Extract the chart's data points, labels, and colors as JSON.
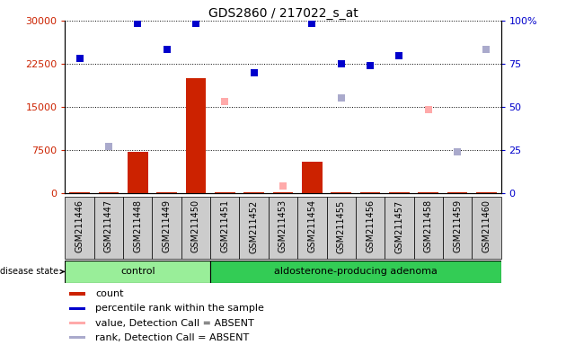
{
  "title": "GDS2860 / 217022_s_at",
  "samples": [
    "GSM211446",
    "GSM211447",
    "GSM211448",
    "GSM211449",
    "GSM211450",
    "GSM211451",
    "GSM211452",
    "GSM211453",
    "GSM211454",
    "GSM211455",
    "GSM211456",
    "GSM211457",
    "GSM211458",
    "GSM211459",
    "GSM211460"
  ],
  "count_values": [
    150,
    100,
    7200,
    100,
    20000,
    100,
    100,
    100,
    5500,
    100,
    100,
    100,
    100,
    100,
    100
  ],
  "percentile_rank": [
    23500,
    null,
    29500,
    25000,
    29500,
    null,
    21000,
    null,
    29500,
    22500,
    22200,
    23900,
    null,
    null,
    null
  ],
  "value_absent": [
    null,
    null,
    null,
    null,
    null,
    16000,
    null,
    1200,
    null,
    null,
    null,
    null,
    14500,
    null,
    null
  ],
  "rank_absent": [
    null,
    8200,
    null,
    null,
    null,
    null,
    null,
    null,
    null,
    16500,
    null,
    null,
    null,
    7200,
    25000
  ],
  "ylim_left": [
    0,
    30000
  ],
  "ylim_right": [
    0,
    100
  ],
  "yticks_left": [
    0,
    7500,
    15000,
    22500,
    30000
  ],
  "yticks_right": [
    0,
    25,
    50,
    75,
    100
  ],
  "left_tick_labels": [
    "0",
    "7500",
    "15000",
    "22500",
    "30000"
  ],
  "right_tick_labels": [
    "0",
    "25",
    "50",
    "75",
    "100%"
  ],
  "left_color": "#cc2200",
  "right_color": "#0000cc",
  "bar_color": "#cc2200",
  "dot_color": "#0000cc",
  "absent_value_color": "#ffaaaa",
  "absent_rank_color": "#aaaacc",
  "group_control_color": "#99ee99",
  "group_adenoma_color": "#33cc55",
  "bg_color": "#cccccc",
  "control_count": 5,
  "total_count": 15,
  "legend_items": [
    {
      "color": "#cc2200",
      "label": "count"
    },
    {
      "color": "#0000cc",
      "label": "percentile rank within the sample"
    },
    {
      "color": "#ffaaaa",
      "label": "value, Detection Call = ABSENT"
    },
    {
      "color": "#aaaacc",
      "label": "rank, Detection Call = ABSENT"
    }
  ]
}
